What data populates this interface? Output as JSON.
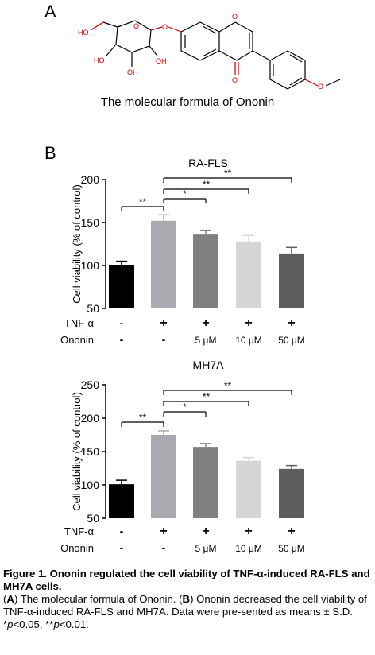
{
  "panel_a": {
    "letter": "A",
    "caption": "The molecular formula of Ononin",
    "atom_labels": {
      "ho": "HO",
      "oh1": "HO",
      "oh2": "OH",
      "oh3": "OH",
      "o_keto": "O",
      "o_ring": "O",
      "o_methoxy": "O",
      "o_glyc": "O",
      "o_link": "O"
    }
  },
  "panel_b": {
    "letter": "B"
  },
  "chart_data": [
    {
      "type": "bar",
      "title": "RA-FLS",
      "ylabel": "Cell viability (% of control)",
      "ylim": [
        50,
        200
      ],
      "yticks": [
        "50",
        "100",
        "150",
        "200"
      ],
      "categories": [
        "control",
        "TNF-α",
        "TNF-α + 5 μM",
        "TNF-α + 10 μM",
        "TNF-α + 50 μM"
      ],
      "values": [
        100,
        152,
        136,
        128,
        114
      ],
      "errors": [
        5,
        7,
        5,
        7,
        7
      ],
      "colors": [
        "#000000",
        "#a9a9b0",
        "#808080",
        "#d6d6d6",
        "#5e5e5e"
      ],
      "row_labels": [
        "TNF-α",
        "Ononin"
      ],
      "tnf_row": [
        "-",
        "+",
        "+",
        "+",
        "+"
      ],
      "ononin_row": [
        "-",
        "-",
        "5 μM",
        "10 μM",
        "50 μM"
      ],
      "significance": [
        {
          "from": 0,
          "to": 1,
          "label": "**"
        },
        {
          "from": 1,
          "to": 2,
          "label": "*"
        },
        {
          "from": 1,
          "to": 3,
          "label": "**"
        },
        {
          "from": 1,
          "to": 4,
          "label": "**"
        }
      ]
    },
    {
      "type": "bar",
      "title": "MH7A",
      "ylabel": "Cell viability (% of control)",
      "ylim": [
        50,
        250
      ],
      "yticks": [
        "50",
        "100",
        "150",
        "200",
        "250"
      ],
      "categories": [
        "control",
        "TNF-α",
        "TNF-α + 5 μM",
        "TNF-α + 10 μM",
        "TNF-α + 50 μM"
      ],
      "values": [
        101,
        175,
        157,
        136,
        124
      ],
      "errors": [
        6,
        6,
        5,
        5,
        5
      ],
      "colors": [
        "#000000",
        "#a9a9b0",
        "#808080",
        "#d6d6d6",
        "#5e5e5e"
      ],
      "row_labels": [
        "TNF-α",
        "Ononin"
      ],
      "tnf_row": [
        "-",
        "+",
        "+",
        "+",
        "+"
      ],
      "ononin_row": [
        "-",
        "-",
        "5 μM",
        "10 μM",
        "50 μM"
      ],
      "significance": [
        {
          "from": 0,
          "to": 1,
          "label": "**"
        },
        {
          "from": 1,
          "to": 2,
          "label": "*"
        },
        {
          "from": 1,
          "to": 3,
          "label": "**"
        },
        {
          "from": 1,
          "to": 4,
          "label": "**"
        }
      ]
    }
  ],
  "legend": {
    "title": "Figure 1. Ononin regulated the cell viability of TNF-α-induced RA-FLS and MH7A cells.",
    "a_open": "(",
    "a_letter": "A",
    "a_text": ") The molecular formula of Ononin. (",
    "b_letter": "B",
    "b_text": ") Ononin decreased the cell viability of TNF-α-induced RA-FLS and MH7A. Data were pre-sented as means ± S.D. *",
    "p1": "p",
    "mid": "<0.05, **",
    "p2": "p",
    "end": "<0.01."
  }
}
